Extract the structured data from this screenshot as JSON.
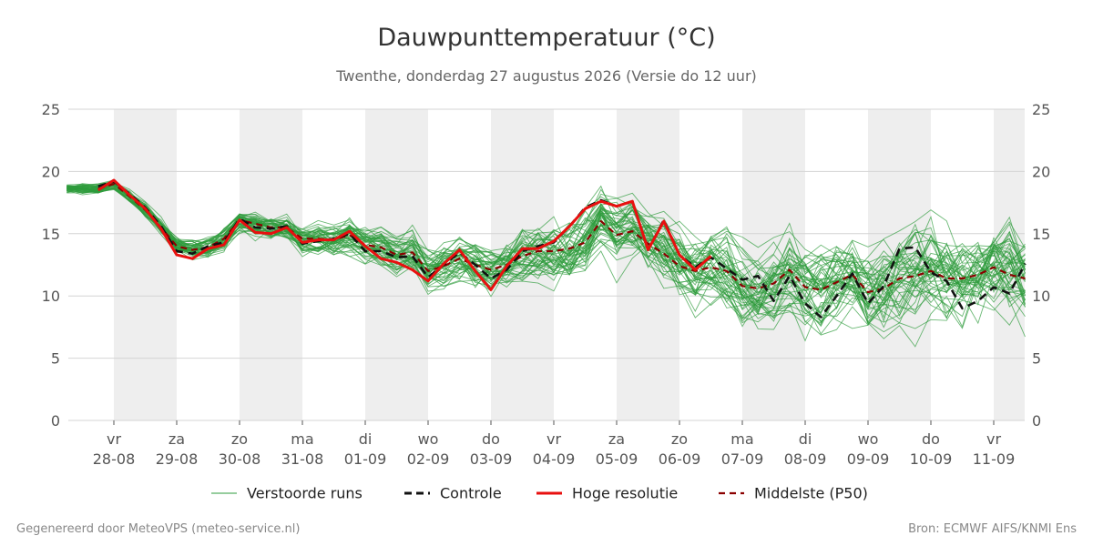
{
  "chart_data": {
    "type": "line",
    "title": "Dauwpunttemperatuur (°C)",
    "subtitle": "Twenthe, donderdag 27 augustus 2026 (Versie do 12 uur)",
    "ylim": [
      0,
      25
    ],
    "yticks": [
      0,
      5,
      10,
      15,
      20,
      25
    ],
    "x_days": [
      {
        "day": "vr",
        "date": "28-08"
      },
      {
        "day": "za",
        "date": "29-08"
      },
      {
        "day": "zo",
        "date": "30-08"
      },
      {
        "day": "ma",
        "date": "31-08"
      },
      {
        "day": "di",
        "date": "01-09"
      },
      {
        "day": "wo",
        "date": "02-09"
      },
      {
        "day": "do",
        "date": "03-09"
      },
      {
        "day": "vr",
        "date": "04-09"
      },
      {
        "day": "za",
        "date": "05-09"
      },
      {
        "day": "zo",
        "date": "06-09"
      },
      {
        "day": "ma",
        "date": "07-09"
      },
      {
        "day": "di",
        "date": "08-09"
      },
      {
        "day": "wo",
        "date": "09-09"
      },
      {
        "day": "do",
        "date": "10-09"
      },
      {
        "day": "vr",
        "date": "11-09"
      }
    ],
    "x_start_day": -0.75,
    "x_end_day": 14.5,
    "colors": {
      "ensemble": "#2e9b3c",
      "controle": "#111111",
      "hoge_resolutie": "#e8100f",
      "middelste": "#8b0000",
      "shade": "#eeeeee"
    },
    "series": [
      {
        "name": "Controle",
        "x": [
          -0.25,
          0,
          0.25,
          0.5,
          0.75,
          1,
          1.25,
          1.5,
          1.75,
          2,
          2.25,
          2.5,
          2.75,
          3,
          3.25,
          3.5,
          3.75,
          4,
          4.25,
          4.5,
          4.75,
          5,
          5.25,
          5.5,
          5.75,
          6,
          6.25,
          6.5,
          6.75,
          7,
          7.25,
          7.5,
          7.75,
          8,
          8.25,
          8.5,
          8.75,
          9,
          9.25,
          9.5,
          9.75,
          10,
          10.25,
          10.5,
          10.75,
          11,
          11.25,
          11.5,
          11.75,
          12,
          12.25,
          12.5,
          12.75,
          13,
          13.25,
          13.5,
          13.75,
          14,
          14.25,
          14.5
        ],
        "y": [
          18.8,
          19.2,
          18.2,
          17.1,
          15.6,
          13.6,
          13.4,
          14.0,
          14.3,
          16.2,
          15.5,
          15.4,
          15.6,
          14.2,
          14.4,
          14.6,
          15.0,
          13.6,
          13.6,
          13.1,
          13.2,
          11.5,
          12.5,
          13.5,
          12.5,
          11.4,
          12.1,
          13.6,
          14.0,
          14.3,
          15.6,
          17.1,
          17.7,
          17.2,
          17.6,
          13.7,
          16.1,
          13.3,
          12.3,
          13.1,
          12.2,
          11.3,
          11.6,
          9.6,
          11.6,
          9.4,
          8.3,
          10.0,
          11.8,
          9.4,
          10.8,
          13.8,
          13.9,
          11.9,
          11.2,
          9.0,
          9.6,
          10.7,
          10.2,
          12.6
        ]
      },
      {
        "name": "Hoge resolutie",
        "x": [
          -0.25,
          0,
          0.25,
          0.5,
          0.75,
          1,
          1.25,
          1.5,
          1.75,
          2,
          2.25,
          2.5,
          2.75,
          3,
          3.25,
          3.5,
          3.75,
          4,
          4.25,
          4.5,
          4.75,
          5,
          5.25,
          5.5,
          5.75,
          6,
          6.25,
          6.5,
          6.75,
          7,
          7.25,
          7.5,
          7.75,
          8,
          8.25,
          8.5,
          8.75,
          9,
          9.25,
          9.5
        ],
        "y": [
          18.5,
          19.3,
          18.1,
          17.0,
          15.4,
          13.3,
          13.0,
          13.8,
          14.1,
          16.1,
          15.1,
          15.0,
          15.5,
          14.3,
          14.5,
          14.5,
          15.2,
          14.0,
          13.0,
          12.7,
          12.1,
          11.2,
          12.6,
          13.7,
          12.0,
          10.5,
          12.4,
          13.8,
          13.8,
          14.4,
          15.6,
          17.0,
          17.6,
          17.2,
          17.6,
          13.7,
          16.0,
          13.3,
          12.1,
          13.2
        ]
      },
      {
        "name": "Middelste (P50)",
        "x": [
          -0.25,
          0,
          0.25,
          0.5,
          0.75,
          1,
          1.25,
          1.5,
          1.75,
          2,
          2.25,
          2.5,
          2.75,
          3,
          3.25,
          3.5,
          3.75,
          4,
          4.25,
          4.5,
          4.75,
          5,
          5.25,
          5.5,
          5.75,
          6,
          6.25,
          6.5,
          6.75,
          7,
          7.25,
          7.5,
          7.75,
          8,
          8.25,
          8.5,
          8.75,
          9,
          9.25,
          9.5,
          9.75,
          10,
          10.25,
          10.5,
          10.75,
          11,
          11.25,
          11.5,
          11.75,
          12,
          12.25,
          12.5,
          12.75,
          13,
          13.25,
          13.5,
          13.75,
          14,
          14.25,
          14.5
        ],
        "y": [
          18.6,
          19.0,
          18.0,
          16.9,
          15.5,
          14.0,
          13.7,
          13.9,
          14.6,
          16.1,
          15.8,
          15.5,
          15.5,
          14.6,
          14.6,
          14.5,
          14.9,
          14.1,
          13.9,
          13.3,
          13.5,
          12.0,
          12.4,
          13.0,
          12.5,
          12.1,
          12.5,
          13.2,
          13.6,
          13.6,
          13.8,
          14.3,
          16.0,
          14.9,
          15.2,
          14.2,
          13.4,
          12.4,
          12.0,
          12.3,
          12.0,
          10.8,
          10.6,
          11.0,
          12.1,
          10.7,
          10.5,
          11.1,
          11.7,
          10.3,
          10.6,
          11.4,
          11.6,
          12.0,
          11.4,
          11.4,
          11.7,
          12.3,
          11.7,
          11.4
        ]
      }
    ],
    "ensemble_members": 50,
    "legend": [
      "Verstoorde runs",
      "Controle",
      "Hoge resolutie",
      "Middelste (P50)"
    ],
    "legend_position": "bottom",
    "grid": true
  },
  "footer": {
    "left": "Gegenereerd door MeteoVPS (meteo-service.nl)",
    "right": "Bron: ECMWF AIFS/KNMI Ens"
  }
}
